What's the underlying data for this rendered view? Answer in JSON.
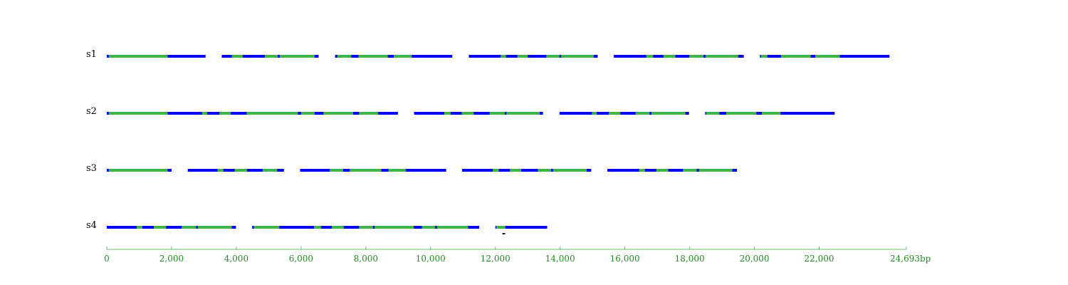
{
  "colors": {
    "block": "#0000ff",
    "highlight": "#3cb54a",
    "axis": "#6abf6a",
    "axis_text": "#228b22",
    "marker": "#000000"
  },
  "axis": {
    "max_bp": 24693,
    "ticks": [
      {
        "value": 0,
        "label": "0"
      },
      {
        "value": 2000,
        "label": "2,000"
      },
      {
        "value": 4000,
        "label": "4,000"
      },
      {
        "value": 6000,
        "label": "6,000"
      },
      {
        "value": 8000,
        "label": "8,000"
      },
      {
        "value": 10000,
        "label": "10,000"
      },
      {
        "value": 12000,
        "label": "12,000"
      },
      {
        "value": 14000,
        "label": "14,000"
      },
      {
        "value": 16000,
        "label": "16,000"
      },
      {
        "value": 18000,
        "label": "18,000"
      },
      {
        "value": 20000,
        "label": "20,000"
      },
      {
        "value": 22000,
        "label": "22,000"
      },
      {
        "value": 24693,
        "label": "24,693bp"
      }
    ]
  },
  "tracks": [
    {
      "name": "s1",
      "blocks": [
        {
          "start": 0,
          "end": 3050,
          "highlights": [
            [
              60,
              1880
            ]
          ]
        },
        {
          "start": 3550,
          "end": 6540,
          "highlights": [
            [
              3860,
              4200
            ],
            [
              4880,
              5280
            ],
            [
              5340,
              6420
            ]
          ]
        },
        {
          "start": 7050,
          "end": 10670,
          "highlights": [
            [
              7120,
              7550
            ],
            [
              7770,
              8680
            ],
            [
              8860,
              9420
            ]
          ]
        },
        {
          "start": 11180,
          "end": 15160,
          "highlights": [
            [
              12160,
              12330
            ],
            [
              12680,
              13000
            ],
            [
              13570,
              13980
            ],
            [
              14030,
              15040
            ]
          ]
        },
        {
          "start": 15660,
          "end": 19670,
          "highlights": [
            [
              16660,
              16870
            ],
            [
              17190,
              17560
            ],
            [
              17990,
              18430
            ],
            [
              18490,
              19500
            ]
          ]
        },
        {
          "start": 20170,
          "end": 24170,
          "highlights": [
            [
              20200,
              20400
            ],
            [
              20820,
              21740
            ],
            [
              21880,
              22640
            ]
          ]
        }
      ]
    },
    {
      "name": "s2",
      "blocks": [
        {
          "start": 0,
          "end": 8990,
          "highlights": [
            [
              60,
              1880
            ],
            [
              2940,
              3100
            ],
            [
              3480,
              3830
            ],
            [
              4320,
              5900
            ],
            [
              6000,
              6420
            ],
            [
              6690,
              7610
            ],
            [
              7790,
              8380
            ]
          ]
        },
        {
          "start": 9490,
          "end": 13470,
          "highlights": [
            [
              10420,
              10620
            ],
            [
              10960,
              11330
            ],
            [
              11820,
              12290
            ],
            [
              12340,
              13370
            ]
          ]
        },
        {
          "start": 13980,
          "end": 17980,
          "highlights": [
            [
              14980,
              15130
            ],
            [
              15500,
              15860
            ],
            [
              16330,
              16760
            ],
            [
              16820,
              17870
            ]
          ]
        },
        {
          "start": 18480,
          "end": 22480,
          "highlights": [
            [
              18510,
              18920
            ],
            [
              19130,
              20060
            ],
            [
              20230,
              20810
            ]
          ]
        }
      ]
    },
    {
      "name": "s3",
      "blocks": [
        {
          "start": 0,
          "end": 2000,
          "highlights": [
            [
              60,
              1880
            ]
          ]
        },
        {
          "start": 2500,
          "end": 5470,
          "highlights": [
            [
              3420,
              3600
            ],
            [
              3950,
              4330
            ],
            [
              4810,
              5260
            ]
          ]
        },
        {
          "start": 5970,
          "end": 10480,
          "highlights": [
            [
              6880,
              7300
            ],
            [
              7500,
              8480
            ],
            [
              8700,
              9240
            ]
          ]
        },
        {
          "start": 10970,
          "end": 14960,
          "highlights": [
            [
              11920,
              12110
            ],
            [
              12450,
              12800
            ],
            [
              13310,
              13720
            ],
            [
              13780,
              14820
            ]
          ]
        },
        {
          "start": 15460,
          "end": 19460,
          "highlights": [
            [
              16440,
              16620
            ],
            [
              16970,
              17340
            ],
            [
              17790,
              18220
            ],
            [
              18290,
              19320
            ]
          ]
        }
      ]
    },
    {
      "name": "s4",
      "blocks": [
        {
          "start": 0,
          "end": 3990,
          "highlights": [
            [
              920,
              1100
            ],
            [
              1450,
              1830
            ],
            [
              2310,
              2760
            ],
            [
              2810,
              3860
            ]
          ]
        },
        {
          "start": 4490,
          "end": 11500,
          "highlights": [
            [
              4540,
              5330
            ],
            [
              6400,
              6620
            ],
            [
              6950,
              7320
            ],
            [
              7790,
              8220
            ],
            [
              8270,
              9480
            ],
            [
              9730,
              10140
            ],
            [
              10200,
              11160
            ]
          ]
        },
        {
          "start": 12000,
          "end": 13600,
          "highlights": [
            [
              12030,
              12310
            ]
          ]
        }
      ],
      "markers": [
        {
          "start": 12220,
          "end": 12300
        }
      ]
    }
  ]
}
